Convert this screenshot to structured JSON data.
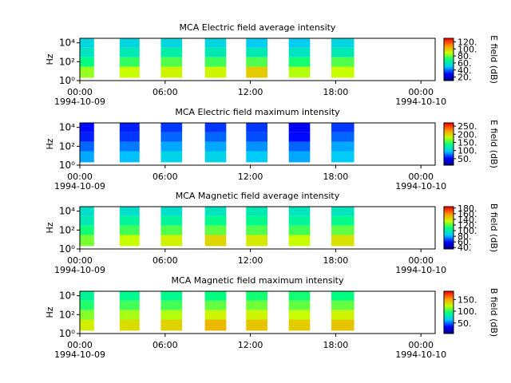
{
  "chart_data": [
    {
      "type": "spectrogram",
      "title": "MCA  Electric field average intensity",
      "ylabel": "Hz",
      "colorbar_label": "E field (dB)",
      "xlim": [
        0,
        25
      ],
      "xticks": [
        {
          "value": 0,
          "label": "00:00"
        },
        {
          "value": 6,
          "label": "06:00"
        },
        {
          "value": 12,
          "label": "12:00"
        },
        {
          "value": 18,
          "label": "18:00"
        },
        {
          "value": 24,
          "label": "00:00"
        }
      ],
      "dates": [
        {
          "value": 0,
          "label": "1994-10-09"
        },
        {
          "value": 24,
          "label": "1994-10-10"
        }
      ],
      "ylim": [
        1,
        30000
      ],
      "log_y": true,
      "yticks": [
        {
          "value": 1,
          "label": "10⁰"
        },
        {
          "value": 100,
          "label": "10²"
        },
        {
          "value": 10000,
          "label": "10⁴"
        }
      ],
      "clim": [
        10,
        130
      ],
      "cticks": [
        {
          "value": 20,
          "label": "20."
        },
        {
          "value": 40,
          "label": "40."
        },
        {
          "value": 60,
          "label": "60."
        },
        {
          "value": 80,
          "label": "80."
        },
        {
          "value": 100,
          "label": "100."
        },
        {
          "value": 120,
          "label": "120."
        }
      ],
      "freq_edges": [
        2,
        30,
        300,
        3000,
        30000
      ],
      "blocks": [
        {
          "start": 0,
          "end": 1,
          "values": [
            85,
            70,
            60,
            55
          ]
        },
        {
          "start": 2.8,
          "end": 4.2,
          "values": [
            90,
            75,
            62,
            55
          ]
        },
        {
          "start": 5.7,
          "end": 7.2,
          "values": [
            92,
            78,
            64,
            55
          ]
        },
        {
          "start": 8.8,
          "end": 10.3,
          "values": [
            92,
            76,
            62,
            55
          ]
        },
        {
          "start": 11.7,
          "end": 13.2,
          "values": [
            100,
            78,
            62,
            52
          ]
        },
        {
          "start": 14.7,
          "end": 16.2,
          "values": [
            88,
            72,
            60,
            52
          ]
        },
        {
          "start": 17.7,
          "end": 19.3,
          "values": [
            90,
            78,
            62,
            55
          ]
        }
      ]
    },
    {
      "type": "spectrogram",
      "title": "MCA  Electric field maximum intensity",
      "ylabel": "Hz",
      "colorbar_label": "E field (dB)",
      "xlim": [
        0,
        25
      ],
      "xticks": [
        {
          "value": 0,
          "label": "00:00"
        },
        {
          "value": 6,
          "label": "06:00"
        },
        {
          "value": 12,
          "label": "12:00"
        },
        {
          "value": 18,
          "label": "18:00"
        },
        {
          "value": 24,
          "label": "00:00"
        }
      ],
      "dates": [
        {
          "value": 0,
          "label": "1994-10-09"
        },
        {
          "value": 24,
          "label": "1994-10-10"
        }
      ],
      "ylim": [
        1,
        30000
      ],
      "log_y": true,
      "yticks": [
        {
          "value": 1,
          "label": "10⁰"
        },
        {
          "value": 100,
          "label": "10²"
        },
        {
          "value": 10000,
          "label": "10⁴"
        }
      ],
      "clim": [
        10,
        270
      ],
      "cticks": [
        {
          "value": 50,
          "label": "50."
        },
        {
          "value": 100,
          "label": "100."
        },
        {
          "value": 150,
          "label": "150."
        },
        {
          "value": 200,
          "label": "200."
        },
        {
          "value": 250,
          "label": "250."
        }
      ],
      "freq_edges": [
        2,
        30,
        300,
        3000,
        30000
      ],
      "blocks": [
        {
          "start": 0,
          "end": 1,
          "values": [
            90,
            75,
            60,
            55
          ]
        },
        {
          "start": 2.8,
          "end": 4.2,
          "values": [
            95,
            80,
            65,
            60
          ]
        },
        {
          "start": 5.7,
          "end": 7.2,
          "values": [
            105,
            90,
            75,
            65
          ]
        },
        {
          "start": 8.8,
          "end": 10.3,
          "values": [
            105,
            90,
            75,
            65
          ]
        },
        {
          "start": 11.7,
          "end": 13.2,
          "values": [
            100,
            85,
            70,
            65
          ]
        },
        {
          "start": 14.7,
          "end": 16.2,
          "values": [
            90,
            75,
            55,
            50
          ]
        },
        {
          "start": 17.7,
          "end": 19.3,
          "values": [
            100,
            90,
            75,
            65
          ]
        }
      ]
    },
    {
      "type": "spectrogram",
      "title": "MCA  Magnetic field average intensity",
      "ylabel": "Hz",
      "colorbar_label": "B field (dB)",
      "xlim": [
        0,
        25
      ],
      "xticks": [
        {
          "value": 0,
          "label": "00:00"
        },
        {
          "value": 6,
          "label": "06:00"
        },
        {
          "value": 12,
          "label": "12:00"
        },
        {
          "value": 18,
          "label": "18:00"
        },
        {
          "value": 24,
          "label": "00:00"
        }
      ],
      "dates": [
        {
          "value": 0,
          "label": "1994-10-09"
        },
        {
          "value": 24,
          "label": "1994-10-10"
        }
      ],
      "ylim": [
        1,
        30000
      ],
      "log_y": true,
      "yticks": [
        {
          "value": 1,
          "label": "10⁰"
        },
        {
          "value": 100,
          "label": "10²"
        },
        {
          "value": 10000,
          "label": "10⁴"
        }
      ],
      "clim": [
        35,
        185
      ],
      "cticks": [
        {
          "value": 40,
          "label": "40."
        },
        {
          "value": 60,
          "label": "60."
        },
        {
          "value": 80,
          "label": "80."
        },
        {
          "value": 100,
          "label": "100."
        },
        {
          "value": 120,
          "label": "120."
        },
        {
          "value": 140,
          "label": "140."
        },
        {
          "value": 160,
          "label": "160."
        },
        {
          "value": 180,
          "label": "180."
        }
      ],
      "freq_edges": [
        2,
        30,
        300,
        3000,
        30000
      ],
      "blocks": [
        {
          "start": 0,
          "end": 1,
          "values": [
            125,
            112,
            100,
            95
          ]
        },
        {
          "start": 2.8,
          "end": 4.2,
          "values": [
            135,
            118,
            105,
            95
          ]
        },
        {
          "start": 5.7,
          "end": 7.2,
          "values": [
            138,
            120,
            105,
            95
          ]
        },
        {
          "start": 8.8,
          "end": 10.3,
          "values": [
            145,
            122,
            108,
            98
          ]
        },
        {
          "start": 11.7,
          "end": 13.2,
          "values": [
            140,
            120,
            108,
            100
          ]
        },
        {
          "start": 14.7,
          "end": 16.2,
          "values": [
            135,
            118,
            105,
            98
          ]
        },
        {
          "start": 17.7,
          "end": 19.3,
          "values": [
            142,
            122,
            108,
            98
          ]
        }
      ]
    },
    {
      "type": "spectrogram",
      "title": "MCA  Magnetic field maximum intensity",
      "ylabel": "Hz",
      "colorbar_label": "B field (dB)",
      "xlim": [
        0,
        25
      ],
      "xticks": [
        {
          "value": 0,
          "label": "00:00"
        },
        {
          "value": 6,
          "label": "06:00"
        },
        {
          "value": 12,
          "label": "12:00"
        },
        {
          "value": 18,
          "label": "18:00"
        },
        {
          "value": 24,
          "label": "00:00"
        }
      ],
      "dates": [
        {
          "value": 0,
          "label": "1994-10-09"
        },
        {
          "value": 24,
          "label": "1994-10-10"
        }
      ],
      "ylim": [
        1,
        30000
      ],
      "log_y": true,
      "yticks": [
        {
          "value": 1,
          "label": "10⁰"
        },
        {
          "value": 100,
          "label": "10²"
        },
        {
          "value": 10000,
          "label": "10⁴"
        }
      ],
      "clim": [
        5,
        185
      ],
      "cticks": [
        {
          "value": 50,
          "label": "50."
        },
        {
          "value": 100,
          "label": "100."
        },
        {
          "value": 150,
          "label": "150."
        }
      ],
      "freq_edges": [
        2,
        30,
        300,
        3000,
        30000
      ],
      "blocks": [
        {
          "start": 0,
          "end": 1,
          "values": [
            130,
            115,
            100,
            90
          ]
        },
        {
          "start": 2.8,
          "end": 4.2,
          "values": [
            135,
            120,
            105,
            92
          ]
        },
        {
          "start": 5.7,
          "end": 7.2,
          "values": [
            138,
            122,
            105,
            92
          ]
        },
        {
          "start": 8.8,
          "end": 10.3,
          "values": [
            145,
            128,
            110,
            95
          ]
        },
        {
          "start": 11.7,
          "end": 13.2,
          "values": [
            142,
            128,
            112,
            98
          ]
        },
        {
          "start": 14.7,
          "end": 16.2,
          "values": [
            140,
            125,
            110,
            98
          ]
        },
        {
          "start": 17.7,
          "end": 19.3,
          "values": [
            142,
            128,
            110,
            95
          ]
        }
      ]
    }
  ],
  "colormap": [
    "#000080",
    "#0000ff",
    "#00c8ff",
    "#00ff80",
    "#c8ff00",
    "#ff9600",
    "#ff0000"
  ]
}
